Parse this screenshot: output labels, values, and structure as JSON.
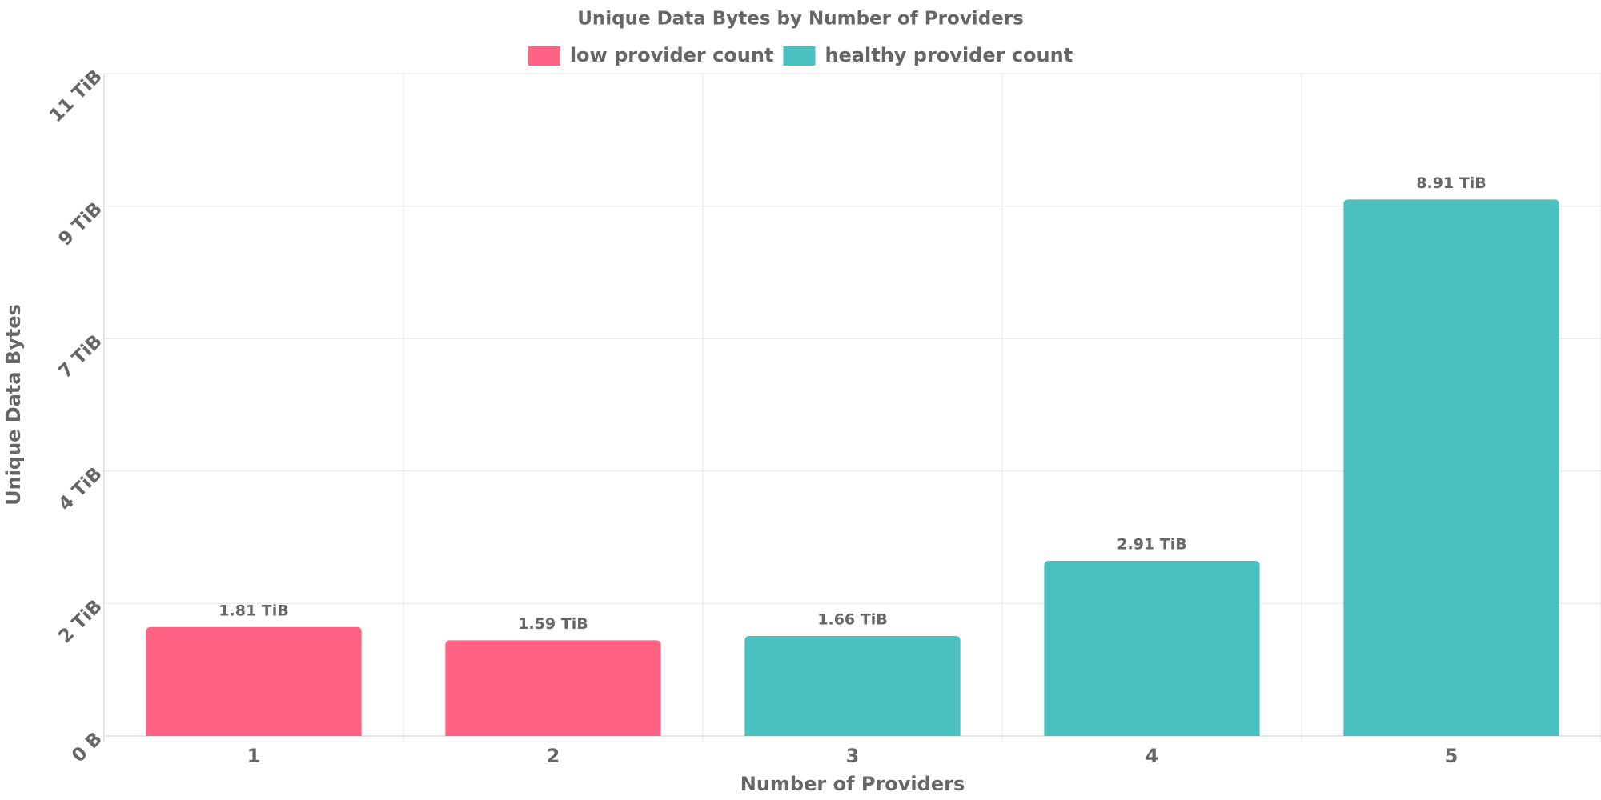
{
  "chart_data": {
    "type": "bar",
    "title": "Unique Data Bytes by Number of Providers",
    "x_label": "Number of Providers",
    "y_label": "Unique Data Bytes",
    "categories": [
      "1",
      "2",
      "3",
      "4",
      "5"
    ],
    "series": [
      {
        "name": "low provider count",
        "color": "#ff6384",
        "values": [
          1.81,
          1.59,
          null,
          null,
          null
        ],
        "value_labels": [
          "1.81 TiB",
          "1.59 TiB",
          null,
          null,
          null
        ]
      },
      {
        "name": "healthy provider count",
        "color": "#4bc0c0",
        "values": [
          null,
          null,
          1.66,
          2.91,
          8.91
        ],
        "value_labels": [
          null,
          null,
          "1.66 TiB",
          "2.91 TiB",
          "8.91 TiB"
        ]
      }
    ],
    "ylim": [
      0,
      11
    ],
    "yticks": [
      {
        "value": 0,
        "label": "0 B"
      },
      {
        "value": 2.2,
        "label": "2 TiB"
      },
      {
        "value": 4.4,
        "label": "4 TiB"
      },
      {
        "value": 6.6,
        "label": "7 TiB"
      },
      {
        "value": 8.8,
        "label": "9 TiB"
      },
      {
        "value": 11,
        "label": "11 TiB"
      }
    ],
    "grid": true,
    "legend": "top"
  }
}
